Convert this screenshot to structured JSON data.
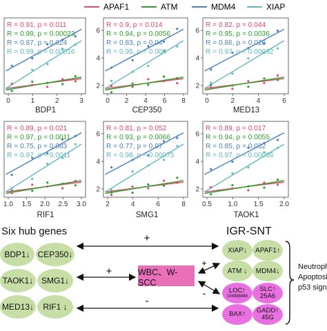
{
  "legend": {
    "items": [
      {
        "label": "APAF1",
        "color": "#e0476a"
      },
      {
        "label": "ATM",
        "color": "#2ca02c"
      },
      {
        "label": "MDM4",
        "color": "#4a7fc0"
      },
      {
        "label": "XIAP",
        "color": "#5fb8c0"
      }
    ]
  },
  "chart_data": [
    {
      "type": "scatter",
      "xlabel": "BDP1",
      "xticks": [
        "0",
        "1",
        "2",
        "3"
      ],
      "yticks": [],
      "stats": [
        "R = 0.91, p = 0.011",
        "R = 0.99, p = 0.00023",
        "R = 0.87, p = 0.024",
        "R = 0.99, p = 0.00016"
      ]
    },
    {
      "type": "scatter",
      "xlabel": "CEP350",
      "xticks": [
        "0",
        "2",
        "4",
        "6",
        "8"
      ],
      "yticks": [
        "2",
        "4",
        "6"
      ],
      "stats": [
        "R = 0.9, p = 0.014",
        "R = 0.94, p = 0.0056",
        "R = 0.83, p = 0.04",
        "R = 0.95, p = 0.004"
      ]
    },
    {
      "type": "scatter",
      "xlabel": "MED13",
      "xticks": [
        "0",
        "2",
        "4",
        "6"
      ],
      "yticks": [
        "2",
        "4",
        "6"
      ],
      "stats": [
        "R = 0.82, p = 0.044",
        "R = 0.95, p = 0.0036",
        "R = 0.86, p = 0.026",
        "R = 0.97, p = 0.00032"
      ]
    },
    {
      "type": "scatter",
      "xlabel": "RIF1",
      "xticks": [
        "1.0",
        "1.5",
        "2.0",
        "2.5",
        "3.0"
      ],
      "yticks": [],
      "stats": [
        "R = 0.89, p = 0.021",
        "R = 0.97, p = 0.0011",
        "R = 0.75, p = 0.083",
        "R = 0.97, p = 0.0011"
      ]
    },
    {
      "type": "scatter",
      "xlabel": "SMG1",
      "xticks": [
        "2",
        "4",
        "6",
        "8"
      ],
      "yticks": [
        "2",
        "4",
        "6"
      ],
      "stats": [
        "R = 0.81, p = 0.052",
        "R = 0.93, p = 0.0066",
        "R = 0.77, p = 0.07",
        "R = 0.98, p = 0.00075"
      ]
    },
    {
      "type": "scatter",
      "xlabel": "TAOK1",
      "xticks": [
        "0.5",
        "1.0",
        "1.5",
        "2.0"
      ],
      "yticks": [
        "2",
        "4",
        "6"
      ],
      "stats": [
        "R = 0.89, p = 0.017",
        "R = 0.94, p = 0.0055",
        "R = 0.85, p = 0.032",
        "R = 0.97, p = 0.00036"
      ]
    }
  ],
  "diagram": {
    "hub_title": "Six hub genes",
    "hub_genes": [
      "BDP1↓",
      "CEP350↓",
      "TAOK1↓",
      "SMG1↓",
      "MED13↓",
      "RIF1 ↓"
    ],
    "center_box": "WBC、W-SCC",
    "igr_title": "IGR-SNT",
    "igr_green": [
      "XIAP↓",
      "APAF1↑",
      "ATM ↓",
      "MDM4↓"
    ],
    "igr_pink": [
      {
        "main": "LOC",
        "sub": "104988484",
        "arrow": "↑"
      },
      {
        "main": "SLC",
        "sub": "25A6",
        "arrow": "↑"
      },
      {
        "main": "BAX",
        "sub": "",
        "arrow": "↑"
      },
      {
        "main": "GADD",
        "sub": "45G",
        "arrow": "↑"
      }
    ],
    "signs": {
      "top": "+",
      "left": "+",
      "upper_right": "+",
      "lower_right": "-",
      "bottom": "-"
    },
    "right_labels": [
      "Neutroph",
      "Apoptosi",
      "p53 sign"
    ]
  }
}
